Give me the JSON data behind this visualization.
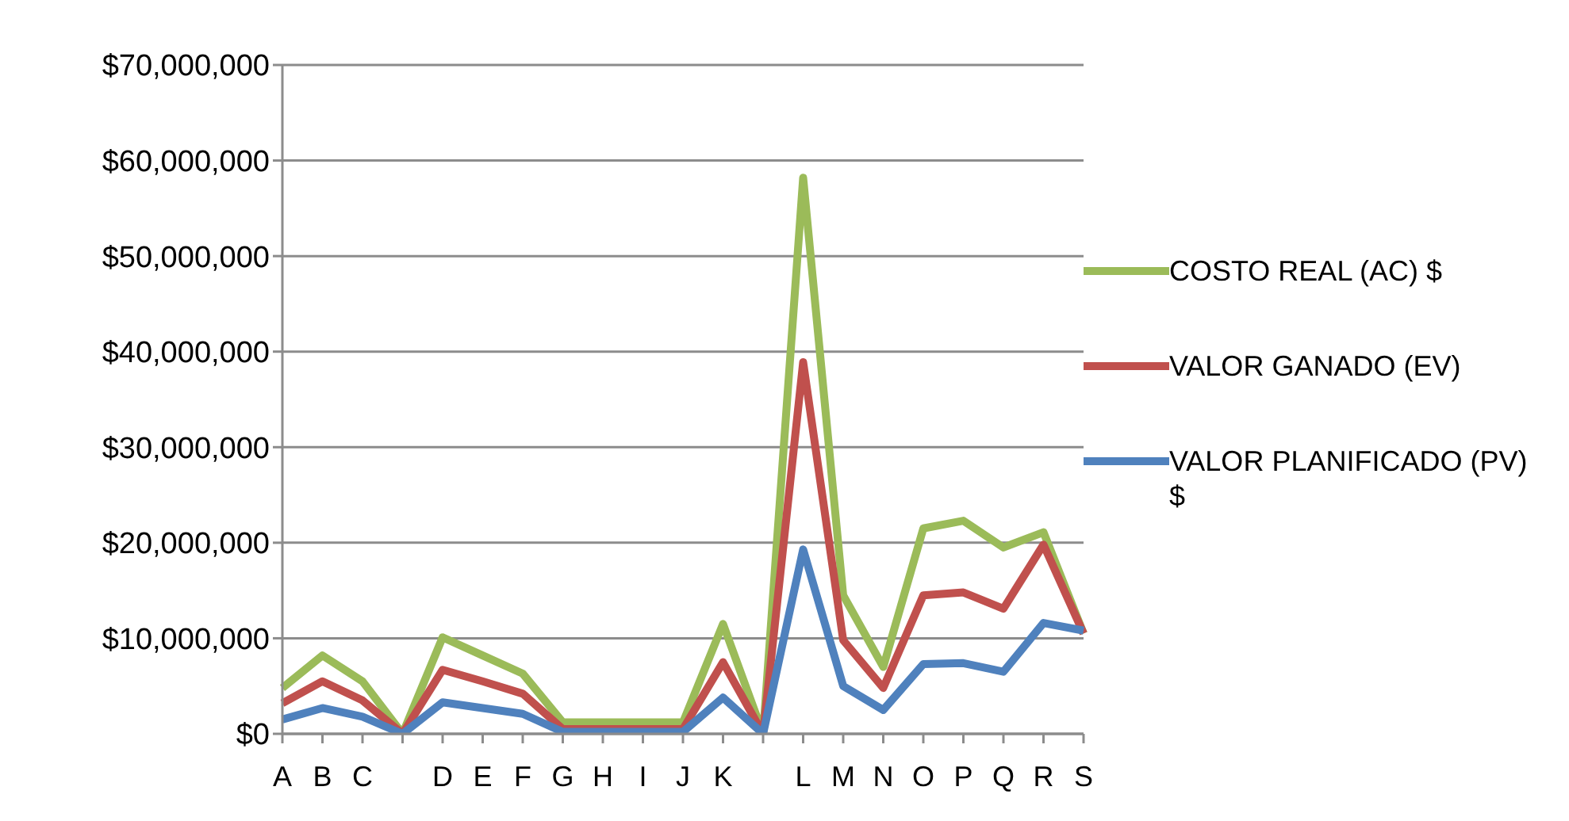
{
  "chart_data": {
    "type": "line",
    "categories": [
      "A",
      "B",
      "C",
      null,
      "D",
      "E",
      "F",
      "G",
      "H",
      "I",
      "J",
      "K",
      null,
      "L",
      "M",
      "N",
      "O",
      "P",
      "Q",
      "R",
      "S"
    ],
    "series": [
      {
        "name": "COSTO REAL (AC) $",
        "color": "#9bbb59",
        "values": [
          4800000,
          8200000,
          5500000,
          0,
          10100000,
          8200000,
          6300000,
          1200000,
          1200000,
          1200000,
          1200000,
          11500000,
          0,
          58200000,
          14500000,
          7000000,
          21500000,
          22300000,
          19500000,
          21100000,
          10500000
        ]
      },
      {
        "name": "VALOR GANADO (EV)",
        "color": "#c0504d",
        "values": [
          3200000,
          5500000,
          3500000,
          0,
          6700000,
          5500000,
          4200000,
          500000,
          500000,
          500000,
          500000,
          7500000,
          0,
          38900000,
          9800000,
          4800000,
          14500000,
          14800000,
          13100000,
          19800000,
          10500000
        ]
      },
      {
        "name": "VALOR PLANIFICADO (PV) $",
        "color": "#4f81bd",
        "values": [
          1500000,
          2700000,
          1800000,
          0,
          3300000,
          2700000,
          2100000,
          200000,
          200000,
          200000,
          200000,
          3800000,
          0,
          19300000,
          5000000,
          2500000,
          7300000,
          7400000,
          6500000,
          11600000,
          10800000
        ]
      }
    ],
    "ylim": [
      0,
      70000000
    ],
    "yticks": [
      {
        "value": 0,
        "label": "$0"
      },
      {
        "value": 10000000,
        "label": "$10,000,000"
      },
      {
        "value": 20000000,
        "label": "$20,000,000"
      },
      {
        "value": 30000000,
        "label": "$30,000,000"
      },
      {
        "value": 40000000,
        "label": "$40,000,000"
      },
      {
        "value": 50000000,
        "label": "$50,000,000"
      },
      {
        "value": 60000000,
        "label": "$60,000,000"
      },
      {
        "value": 70000000,
        "label": "$70,000,000"
      }
    ],
    "grid": "y",
    "legend": "right",
    "marker": "none",
    "line_style": "solid"
  }
}
